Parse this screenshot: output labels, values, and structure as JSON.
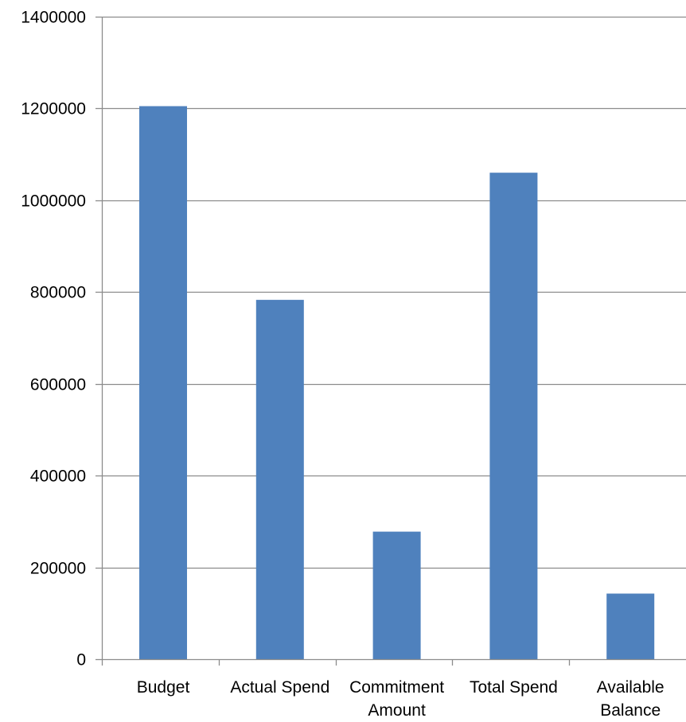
{
  "chart_data": {
    "type": "bar",
    "categories": [
      [
        "Budget"
      ],
      [
        "Actual Spend"
      ],
      [
        "Commitment",
        "Amount"
      ],
      [
        "Total Spend"
      ],
      [
        "Available",
        "Balance"
      ]
    ],
    "category_names": [
      "Budget",
      "Actual Spend",
      "Commitment Amount",
      "Total Spend",
      "Available Balance"
    ],
    "values": [
      1205000,
      783000,
      278000,
      1060000,
      143000
    ],
    "ylim": [
      0,
      1400000
    ],
    "yticks": [
      0,
      200000,
      400000,
      600000,
      800000,
      1000000,
      1200000,
      1400000
    ],
    "ytick_labels": [
      "0",
      "200000",
      "400000",
      "600000",
      "800000",
      "1000000",
      "1200000",
      "1400000"
    ],
    "grid": true,
    "legend": "none",
    "bar_color": "#4f81bd"
  }
}
